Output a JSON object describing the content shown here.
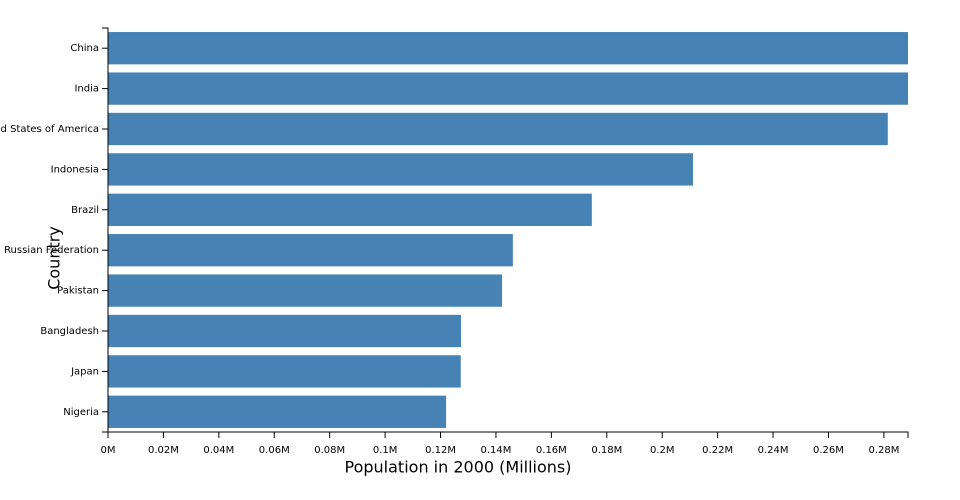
{
  "chart_data": {
    "type": "bar",
    "orientation": "horizontal",
    "x_label": "Population in 2000 (Millions)",
    "y_label": "Country",
    "categories": [
      "China",
      "India",
      "United States of America",
      "Indonesia",
      "Brazil",
      "Russian Federation",
      "Pakistan",
      "Bangladesh",
      "Japan",
      "Nigeria"
    ],
    "values": [
      0.2887,
      0.2887,
      0.2814,
      0.2111,
      0.1746,
      0.1461,
      0.1422,
      0.1274,
      0.1273,
      0.122
    ],
    "color": "#4682b4",
    "xlim": [
      0,
      0.2887
    ],
    "xticks": [
      {
        "value": 0,
        "label": "0M"
      },
      {
        "value": 0.02,
        "label": "0.02M"
      },
      {
        "value": 0.04,
        "label": "0.04M"
      },
      {
        "value": 0.06,
        "label": "0.06M"
      },
      {
        "value": 0.08,
        "label": "0.08M"
      },
      {
        "value": 0.1,
        "label": "0.1M"
      },
      {
        "value": 0.12,
        "label": "0.12M"
      },
      {
        "value": 0.14,
        "label": "0.14M"
      },
      {
        "value": 0.16,
        "label": "0.16M"
      },
      {
        "value": 0.18,
        "label": "0.18M"
      },
      {
        "value": 0.2,
        "label": "0.2M"
      },
      {
        "value": 0.22,
        "label": "0.22M"
      },
      {
        "value": 0.24,
        "label": "0.24M"
      },
      {
        "value": 0.26,
        "label": "0.26M"
      },
      {
        "value": 0.28,
        "label": "0.28M"
      }
    ],
    "grid": false
  }
}
